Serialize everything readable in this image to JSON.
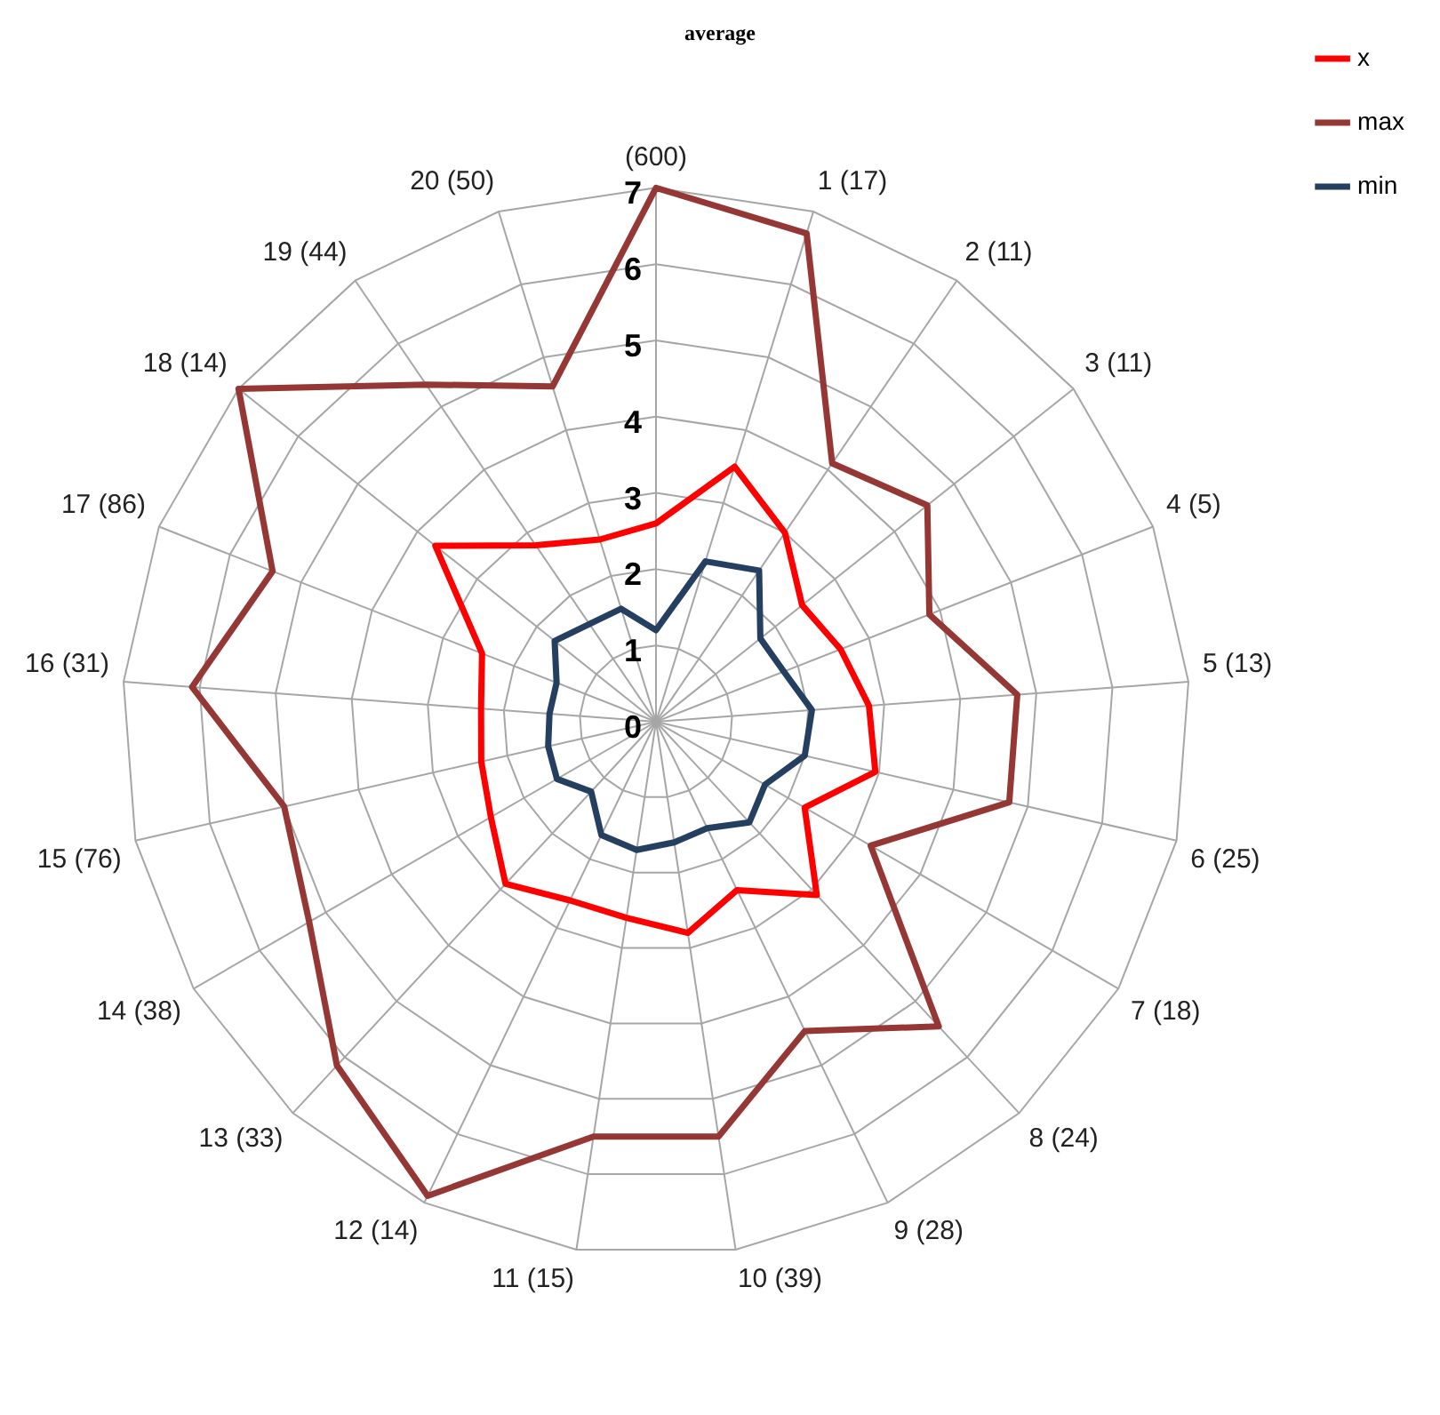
{
  "chart_data": {
    "type": "radar",
    "title": "average",
    "categories": [
      "(600)",
      "1 (17)",
      "2 (11)",
      "3 (11)",
      "4 (5)",
      "5 (13)",
      "6 (25)",
      "7 (18)",
      "8 (24)",
      "9 (28)",
      "10 (39)",
      "11 (15)",
      "12 (14)",
      "13 (33)",
      "14 (38)",
      "15 (76)",
      "16 (31)",
      "17 (86)",
      "18 (14)",
      "19 (44)",
      "20 (50)"
    ],
    "series": [
      {
        "name": "x",
        "color": "#ff0000",
        "values": [
          2.6,
          3.5,
          3.0,
          2.45,
          2.6,
          2.8,
          2.95,
          2.25,
          3.1,
          2.45,
          2.8,
          2.6,
          2.6,
          2.9,
          2.5,
          2.35,
          2.3,
          2.45,
          3.7,
          2.8,
          2.5
        ]
      },
      {
        "name": "max",
        "color": "#953735",
        "values": [
          7,
          6.7,
          4.1,
          4.55,
          3.85,
          4.75,
          4.75,
          3.25,
          5.45,
          4.5,
          5.5,
          5.5,
          6.9,
          6.15,
          5.25,
          5.0,
          6.1,
          5.4,
          7,
          5.35,
          4.6
        ]
      },
      {
        "name": "min",
        "color": "#243f60",
        "values": [
          1.2,
          2.2,
          2.4,
          1.75,
          1.8,
          2.05,
          2.0,
          1.65,
          1.8,
          1.55,
          1.6,
          1.7,
          1.65,
          1.25,
          1.5,
          1.45,
          1.4,
          1.4,
          1.7,
          1.55,
          1.55
        ]
      }
    ],
    "ylim": [
      0,
      7
    ],
    "yticks": [
      0,
      1,
      2,
      3,
      4,
      5,
      6,
      7
    ],
    "grid": true,
    "legend": "top right",
    "marker": "none",
    "line_style": "solid"
  }
}
